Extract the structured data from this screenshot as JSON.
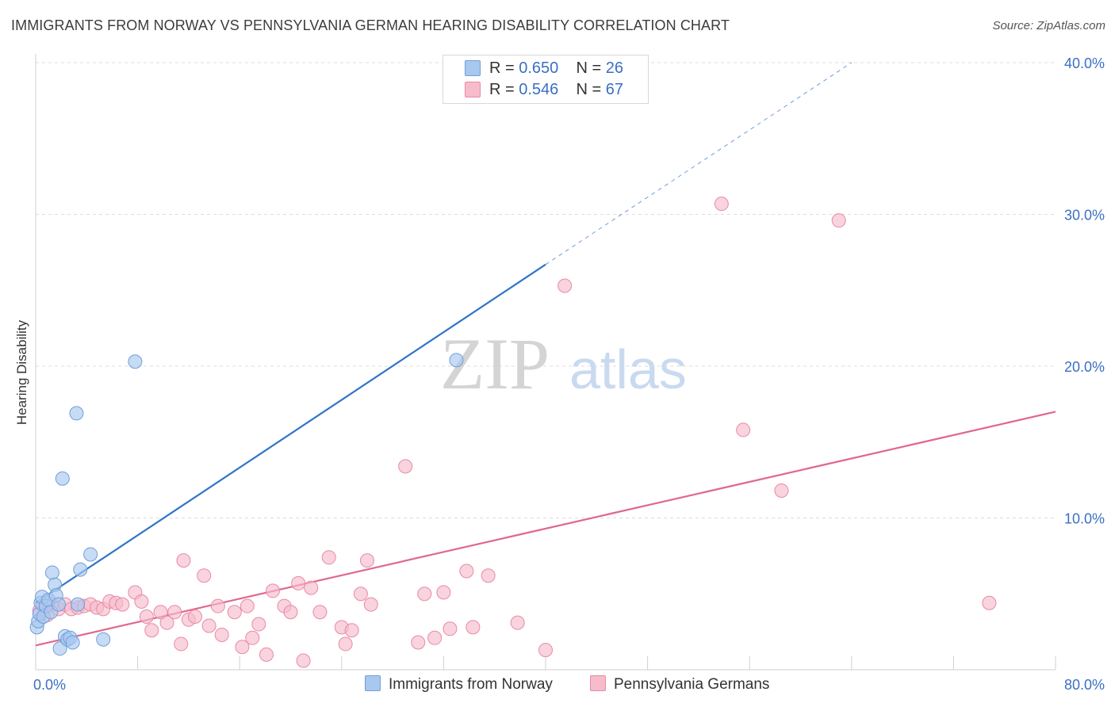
{
  "title": "IMMIGRANTS FROM NORWAY VS PENNSYLVANIA GERMAN HEARING DISABILITY CORRELATION CHART",
  "source": "Source: ZipAtlas.com",
  "watermark": {
    "zip": "ZIP",
    "atlas": "atlas"
  },
  "legend_top": {
    "rows": [
      {
        "r_label": "R =",
        "r_value": "0.650",
        "n_label": "N =",
        "n_value": "26"
      },
      {
        "r_label": "R =",
        "r_value": "0.546",
        "n_label": "N =",
        "n_value": "67"
      }
    ]
  },
  "colors": {
    "blue_fill": "#a9c8ef",
    "blue_stroke": "#6f9fd9",
    "blue_line": "#2f74c7",
    "pink_fill": "#f6bccb",
    "pink_stroke": "#e98aa6",
    "pink_line": "#e06890",
    "tick_label": "#3a6fc4",
    "grid": "#dcdcdc"
  },
  "chart_data": {
    "type": "scatter",
    "title": "IMMIGRANTS FROM NORWAY VS PENNSYLVANIA GERMAN HEARING DISABILITY CORRELATION CHART",
    "xlabel": "",
    "ylabel": "Hearing Disability",
    "xlim": [
      0,
      80
    ],
    "ylim": [
      0,
      40
    ],
    "x_tick_labels": [
      {
        "value": 0,
        "label": "0.0%"
      },
      {
        "value": 80,
        "label": "80.0%"
      }
    ],
    "y_tick_labels": [
      {
        "value": 10,
        "label": "10.0%"
      },
      {
        "value": 20,
        "label": "20.0%"
      },
      {
        "value": 30,
        "label": "30.0%"
      },
      {
        "value": 40,
        "label": "40.0%"
      }
    ],
    "y_grid": [
      10,
      20,
      30,
      40
    ],
    "x_minor_ticks": [
      8,
      16,
      24,
      32,
      40,
      48,
      56,
      64,
      72,
      80
    ],
    "series": [
      {
        "name": "Immigrants from Norway",
        "color": "#a9c8ef",
        "stroke": "#6f9fd9",
        "points": [
          [
            0.1,
            2.8
          ],
          [
            0.2,
            3.2
          ],
          [
            0.3,
            3.7
          ],
          [
            0.4,
            4.4
          ],
          [
            0.5,
            4.8
          ],
          [
            0.6,
            3.5
          ],
          [
            0.8,
            4.2
          ],
          [
            1.0,
            4.6
          ],
          [
            1.2,
            3.8
          ],
          [
            1.3,
            6.4
          ],
          [
            1.5,
            5.6
          ],
          [
            1.6,
            4.9
          ],
          [
            1.8,
            4.3
          ],
          [
            1.9,
            1.4
          ],
          [
            2.1,
            12.6
          ],
          [
            2.3,
            2.2
          ],
          [
            2.5,
            2.0
          ],
          [
            2.7,
            2.1
          ],
          [
            2.9,
            1.8
          ],
          [
            3.2,
            16.9
          ],
          [
            3.3,
            4.3
          ],
          [
            3.5,
            6.6
          ],
          [
            4.3,
            7.6
          ],
          [
            5.3,
            2.0
          ],
          [
            7.8,
            20.3
          ],
          [
            33.0,
            20.4
          ]
        ],
        "trend": {
          "x0": 0,
          "y0": 4.4,
          "x1": 40,
          "y1": 26.7,
          "dash_to_x": 64,
          "dash_to_y": 40
        }
      },
      {
        "name": "Pennsylvania Germans",
        "color": "#f6bccb",
        "stroke": "#e98aa6",
        "points": [
          [
            0.3,
            3.9
          ],
          [
            0.6,
            4.2
          ],
          [
            0.9,
            3.6
          ],
          [
            1.3,
            4.3
          ],
          [
            1.8,
            4.0
          ],
          [
            2.3,
            4.3
          ],
          [
            2.8,
            4.0
          ],
          [
            3.3,
            4.1
          ],
          [
            3.8,
            4.2
          ],
          [
            4.3,
            4.3
          ],
          [
            4.8,
            4.1
          ],
          [
            5.3,
            4.0
          ],
          [
            5.8,
            4.5
          ],
          [
            6.3,
            4.4
          ],
          [
            6.8,
            4.3
          ],
          [
            7.8,
            5.1
          ],
          [
            8.3,
            4.5
          ],
          [
            8.7,
            3.5
          ],
          [
            9.1,
            2.6
          ],
          [
            9.8,
            3.8
          ],
          [
            10.3,
            3.1
          ],
          [
            10.9,
            3.8
          ],
          [
            11.4,
            1.7
          ],
          [
            11.6,
            7.2
          ],
          [
            12.0,
            3.3
          ],
          [
            12.5,
            3.5
          ],
          [
            13.2,
            6.2
          ],
          [
            13.6,
            2.9
          ],
          [
            14.3,
            4.2
          ],
          [
            14.6,
            2.3
          ],
          [
            15.6,
            3.8
          ],
          [
            16.2,
            1.5
          ],
          [
            16.6,
            4.2
          ],
          [
            17.0,
            2.1
          ],
          [
            17.5,
            3.0
          ],
          [
            18.1,
            1.0
          ],
          [
            18.6,
            5.2
          ],
          [
            19.5,
            4.2
          ],
          [
            20.0,
            3.8
          ],
          [
            20.6,
            5.7
          ],
          [
            21.0,
            0.6
          ],
          [
            21.6,
            5.4
          ],
          [
            22.3,
            3.8
          ],
          [
            23.0,
            7.4
          ],
          [
            24.0,
            2.8
          ],
          [
            24.3,
            1.7
          ],
          [
            24.8,
            2.6
          ],
          [
            25.5,
            5.0
          ],
          [
            26.0,
            7.2
          ],
          [
            26.3,
            4.3
          ],
          [
            29.0,
            13.4
          ],
          [
            30.0,
            1.8
          ],
          [
            30.5,
            5.0
          ],
          [
            31.3,
            2.1
          ],
          [
            32.0,
            5.1
          ],
          [
            32.5,
            2.7
          ],
          [
            33.8,
            6.5
          ],
          [
            34.3,
            2.8
          ],
          [
            35.5,
            6.2
          ],
          [
            37.8,
            3.1
          ],
          [
            40.0,
            1.3
          ],
          [
            41.5,
            25.3
          ],
          [
            53.8,
            30.7
          ],
          [
            55.5,
            15.8
          ],
          [
            58.5,
            11.8
          ],
          [
            63.0,
            29.6
          ],
          [
            74.8,
            4.4
          ]
        ],
        "trend": {
          "x0": 0,
          "y0": 1.6,
          "x1": 80,
          "y1": 17.0
        }
      }
    ]
  }
}
